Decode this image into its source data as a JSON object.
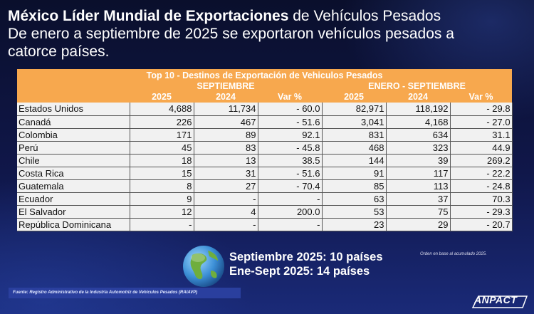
{
  "title": {
    "bold": "México Líder Mundial de Exportaciones",
    "rest": " de Vehículos Pesados",
    "line2": "De enero a septiembre de 2025 se exportaron vehículos pesados a",
    "line3": "catorce países."
  },
  "table": {
    "title": "Top 10 - Destinos de Exportación de Vehiculos Pesados",
    "group1": "SEPTIEMBRE",
    "group2": "ENERO - SEPTIEMBRE",
    "columns": [
      "2025",
      "2024",
      "Var %",
      "2025",
      "2024",
      "Var %"
    ],
    "rows": [
      {
        "country": "Estados Unidos",
        "v": [
          "4,688",
          "11,734",
          "- 60.0",
          "82,971",
          "118,192",
          "- 29.8"
        ]
      },
      {
        "country": "Canadá",
        "v": [
          "226",
          "467",
          "- 51.6",
          "3,041",
          "4,168",
          "- 27.0"
        ]
      },
      {
        "country": "Colombia",
        "v": [
          "171",
          "89",
          "92.1",
          "831",
          "634",
          "31.1"
        ]
      },
      {
        "country": "Perú",
        "v": [
          "45",
          "83",
          "- 45.8",
          "468",
          "323",
          "44.9"
        ]
      },
      {
        "country": "Chile",
        "v": [
          "18",
          "13",
          "38.5",
          "144",
          "39",
          "269.2"
        ]
      },
      {
        "country": "Costa Rica",
        "v": [
          "15",
          "31",
          "- 51.6",
          "91",
          "117",
          "- 22.2"
        ]
      },
      {
        "country": "Guatemala",
        "v": [
          "8",
          "27",
          "- 70.4",
          "85",
          "113",
          "- 24.8"
        ]
      },
      {
        "country": "Ecuador",
        "v": [
          "9",
          "-",
          "-",
          "63",
          "37",
          "70.3"
        ]
      },
      {
        "country": "El Salvador",
        "v": [
          "12",
          "4",
          "200.0",
          "53",
          "75",
          "- 29.3"
        ]
      },
      {
        "country": "República Dominicana",
        "v": [
          "-",
          "-",
          "-",
          "23",
          "29",
          "- 20.7"
        ]
      }
    ]
  },
  "summary": {
    "line1": "Septiembre 2025: 10 países",
    "line2": "Ene-Sept 2025: 14 países"
  },
  "note": "Orden en base al acumulado 2025.",
  "source": "Fuente: Registro Administrativo de la Industria Automotriz de Vehículos Pesados (RAIAVP)",
  "logo": "ANPACT",
  "icons": {
    "globe": "globe-icon"
  },
  "colors": {
    "header": "#f7a84e",
    "background": "#0b1030"
  }
}
